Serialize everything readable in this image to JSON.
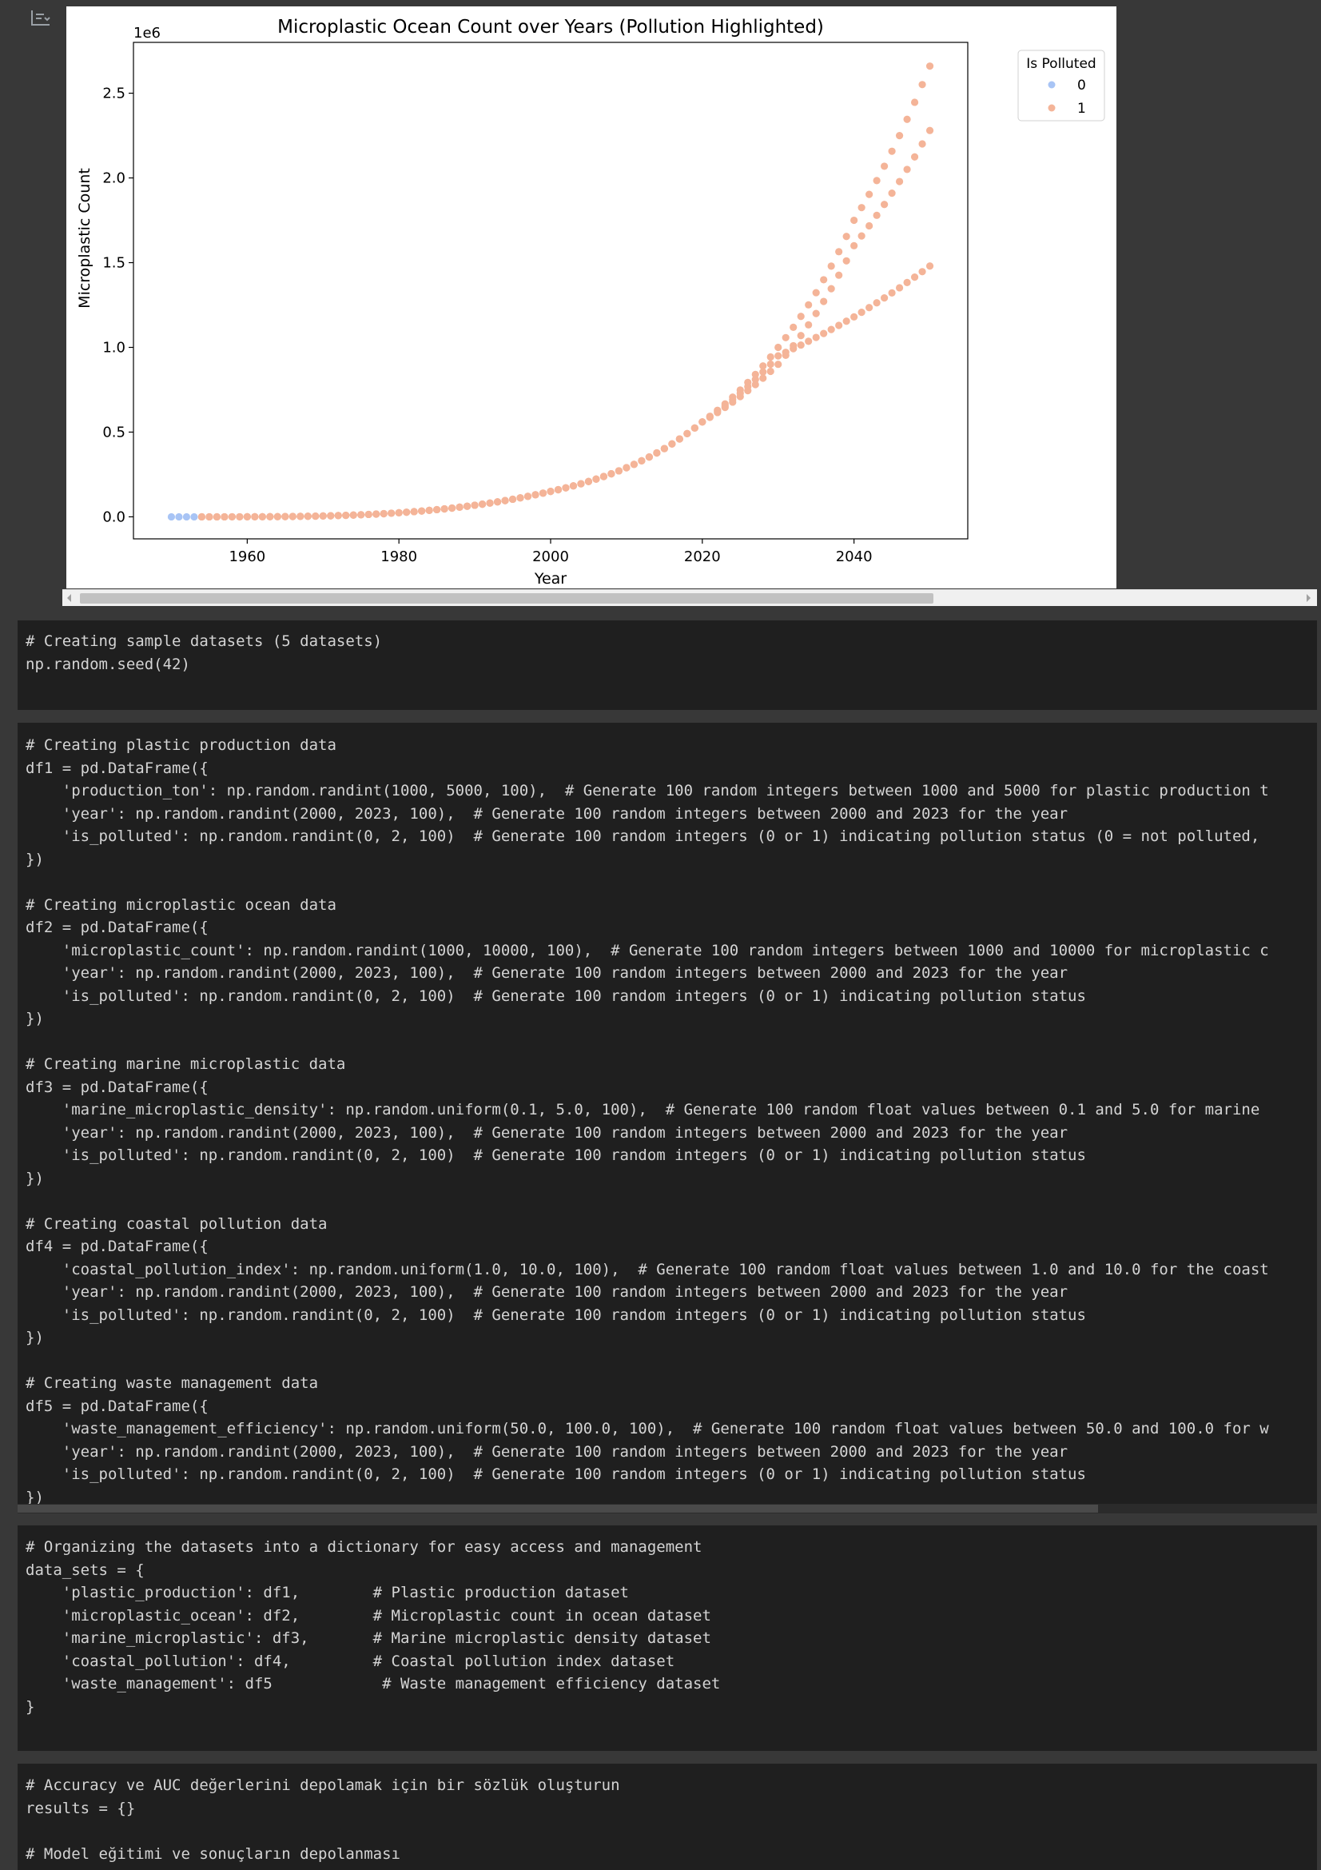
{
  "output_toggle_icon": "output-collapse-icon",
  "chart_data": {
    "type": "scatter",
    "title": "Microplastic Ocean Count over Years (Pollution Highlighted)",
    "xlabel": "Year",
    "ylabel": "Microplastic Count",
    "y_offset_label": "1e6",
    "xlim": [
      1945,
      2055
    ],
    "ylim": [
      -130000,
      2800000
    ],
    "xticks": [
      1960,
      1980,
      2000,
      2020,
      2040
    ],
    "yticks": [
      0,
      500000,
      1000000,
      1500000,
      2000000,
      2500000
    ],
    "ytick_labels": [
      "0.0",
      "0.5",
      "1.0",
      "1.5",
      "2.0",
      "2.5"
    ],
    "legend": {
      "title": "Is Polluted",
      "placement": "top-right outside",
      "entries": [
        "0",
        "1"
      ]
    },
    "colors": {
      "0": "#a8c4f5",
      "1": "#f4b498"
    },
    "grid": false,
    "series": [
      {
        "name": "0",
        "x": [
          1950,
          1951,
          1952,
          1953
        ],
        "y": [
          0,
          0,
          0,
          0
        ]
      },
      {
        "name": "1",
        "x_start": 1954,
        "x_end": 2050,
        "note": "three exponential branches",
        "branches": [
          {
            "y_at": {
              "1954": 0,
              "2000": 150000,
              "2020": 560000,
              "2030": 950000,
              "2040": 1180000,
              "2050": 1480000
            }
          },
          {
            "y_at": {
              "1954": 0,
              "2000": 150000,
              "2020": 560000,
              "2030": 900000,
              "2040": 1600000,
              "2050": 2280000
            }
          },
          {
            "y_at": {
              "1954": 0,
              "2000": 150000,
              "2020": 560000,
              "2030": 1000000,
              "2040": 1750000,
              "2050": 2660000
            }
          }
        ]
      }
    ]
  },
  "cells": [
    {
      "lines": [
        "# Creating sample datasets (5 datasets)",
        "np.random.seed(42)"
      ]
    },
    {
      "lines": [
        "# Creating plastic production data",
        "df1 = pd.DataFrame({",
        "    'production_ton': np.random.randint(1000, 5000, 100),  # Generate 100 random integers between 1000 and 5000 for plastic production t",
        "    'year': np.random.randint(2000, 2023, 100),  # Generate 100 random integers between 2000 and 2023 for the year",
        "    'is_polluted': np.random.randint(0, 2, 100)  # Generate 100 random integers (0 or 1) indicating pollution status (0 = not polluted,",
        "})",
        "",
        "# Creating microplastic ocean data",
        "df2 = pd.DataFrame({",
        "    'microplastic_count': np.random.randint(1000, 10000, 100),  # Generate 100 random integers between 1000 and 10000 for microplastic c",
        "    'year': np.random.randint(2000, 2023, 100),  # Generate 100 random integers between 2000 and 2023 for the year",
        "    'is_polluted': np.random.randint(0, 2, 100)  # Generate 100 random integers (0 or 1) indicating pollution status",
        "})",
        "",
        "# Creating marine microplastic data",
        "df3 = pd.DataFrame({",
        "    'marine_microplastic_density': np.random.uniform(0.1, 5.0, 100),  # Generate 100 random float values between 0.1 and 5.0 for marine",
        "    'year': np.random.randint(2000, 2023, 100),  # Generate 100 random integers between 2000 and 2023 for the year",
        "    'is_polluted': np.random.randint(0, 2, 100)  # Generate 100 random integers (0 or 1) indicating pollution status",
        "})",
        "",
        "# Creating coastal pollution data",
        "df4 = pd.DataFrame({",
        "    'coastal_pollution_index': np.random.uniform(1.0, 10.0, 100),  # Generate 100 random float values between 1.0 and 10.0 for the coast",
        "    'year': np.random.randint(2000, 2023, 100),  # Generate 100 random integers between 2000 and 2023 for the year",
        "    'is_polluted': np.random.randint(0, 2, 100)  # Generate 100 random integers (0 or 1) indicating pollution status",
        "})",
        "",
        "# Creating waste management data",
        "df5 = pd.DataFrame({",
        "    'waste_management_efficiency': np.random.uniform(50.0, 100.0, 100),  # Generate 100 random float values between 50.0 and 100.0 for w",
        "    'year': np.random.randint(2000, 2023, 100),  # Generate 100 random integers between 2000 and 2023 for the year",
        "    'is_polluted': np.random.randint(0, 2, 100)  # Generate 100 random integers (0 or 1) indicating pollution status",
        "})"
      ]
    },
    {
      "lines": [
        "# Organizing the datasets into a dictionary for easy access and management",
        "data_sets = {",
        "    'plastic_production': df1,        # Plastic production dataset",
        "    'microplastic_ocean': df2,        # Microplastic count in ocean dataset",
        "    'marine_microplastic': df3,       # Marine microplastic density dataset",
        "    'coastal_pollution': df4,         # Coastal pollution index dataset",
        "    'waste_management': df5            # Waste management efficiency dataset",
        "}"
      ]
    },
    {
      "lines": [
        "# Accuracy ve AUC değerlerini depolamak için bir sözlük oluşturun",
        "results = {}",
        "",
        "# Model eğitimi ve sonuçların depolanması"
      ]
    }
  ]
}
